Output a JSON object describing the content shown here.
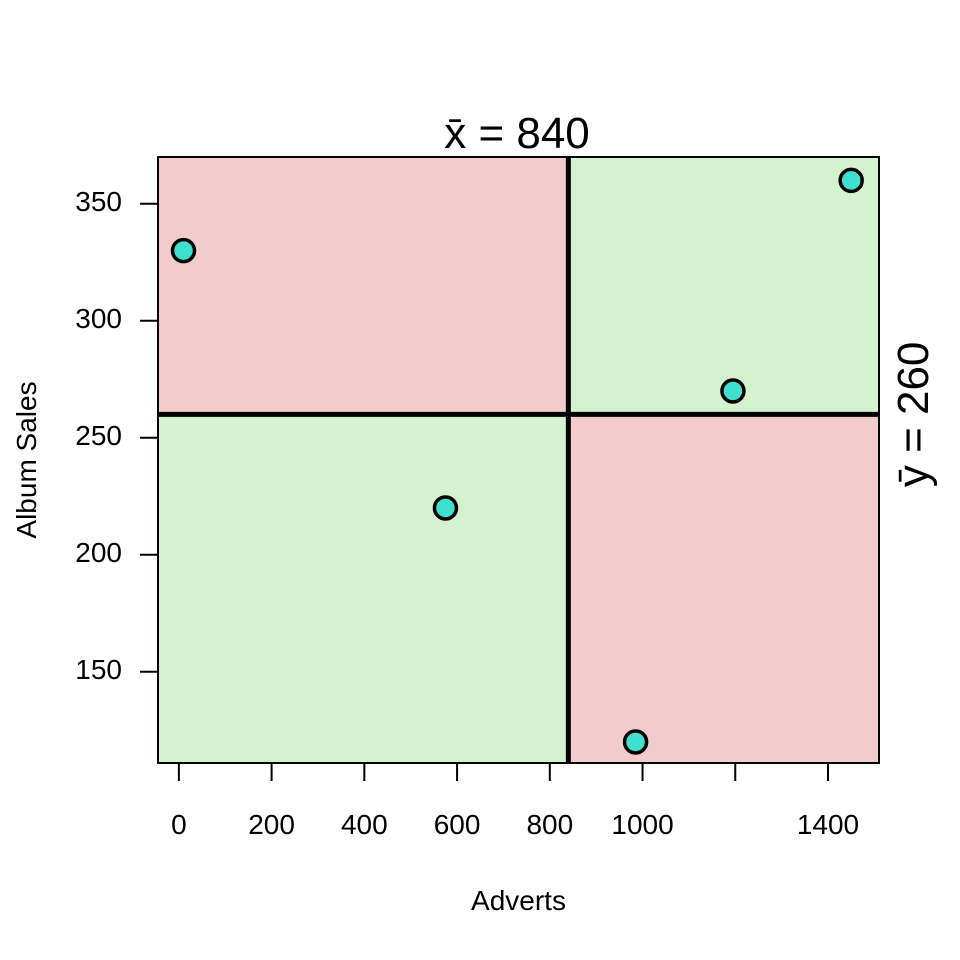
{
  "chart_data": {
    "type": "scatter",
    "title": "",
    "xlabel": "Adverts",
    "ylabel": "Album Sales",
    "xlim": [
      -45,
      1510
    ],
    "ylim": [
      111,
      370
    ],
    "x_ticks": [
      0,
      200,
      400,
      600,
      800,
      1000,
      1200,
      1400
    ],
    "x_tick_labels": [
      "0",
      "200",
      "400",
      "600",
      "800",
      "1000",
      "",
      "1400"
    ],
    "y_ticks": [
      150,
      200,
      250,
      300,
      350
    ],
    "y_tick_labels": [
      "150",
      "200",
      "250",
      "300",
      "350"
    ],
    "points": [
      {
        "x": 10,
        "y": 330
      },
      {
        "x": 575,
        "y": 220
      },
      {
        "x": 985,
        "y": 120
      },
      {
        "x": 1195,
        "y": 270
      },
      {
        "x": 1450,
        "y": 360
      }
    ],
    "mean_x": 840,
    "mean_y": 260,
    "mean_x_label": "x̄ = 840",
    "mean_y_label": "ȳ = 260",
    "colors": {
      "positive_quadrant": "#d3f3cf",
      "negative_quadrant": "#f2cbcc",
      "point_fill": "#40e0d0",
      "point_stroke": "#000000",
      "mean_line": "#000000"
    },
    "grid": false,
    "legend": "none"
  }
}
